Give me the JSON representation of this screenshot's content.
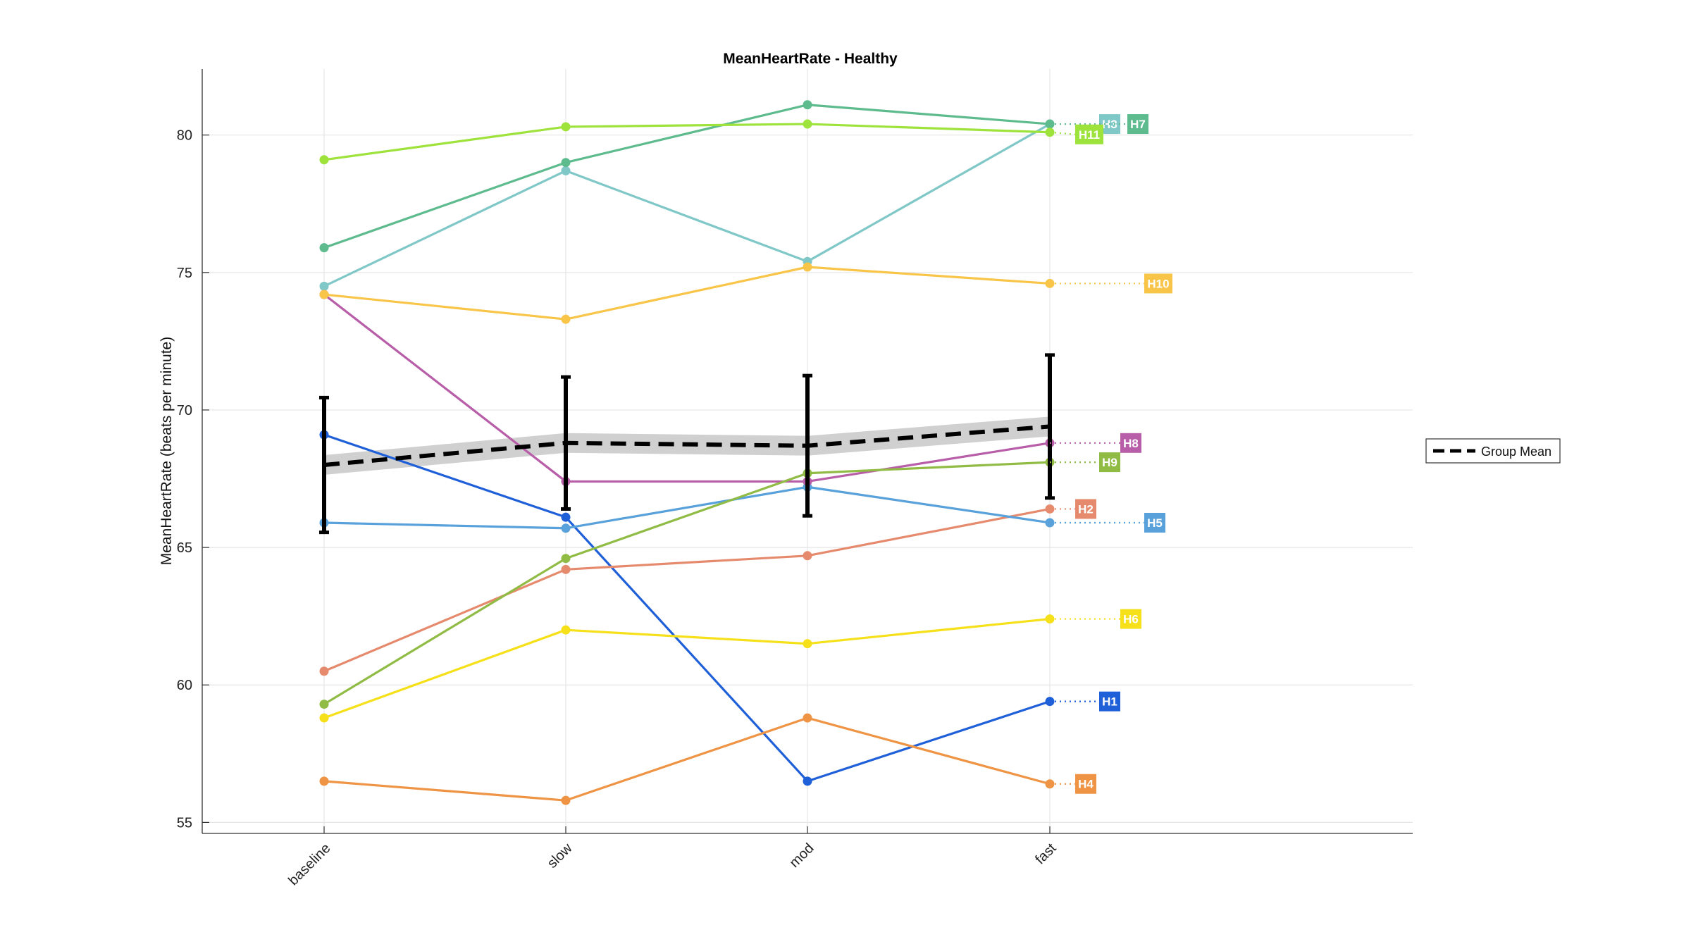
{
  "chart_data": {
    "type": "line",
    "title": "MeanHeartRate - Healthy",
    "xlabel": "",
    "ylabel": "MeanHeartRate (beats per minute)",
    "categories": [
      "baseline",
      "slow",
      "mod",
      "fast"
    ],
    "ylim": [
      54.6,
      82.4
    ],
    "yticks": [
      55,
      60,
      65,
      70,
      75,
      80
    ],
    "grid": true,
    "legend": {
      "placement": "right",
      "entries": [
        "Group Mean"
      ]
    },
    "series": [
      {
        "name": "H1",
        "color": "#1f5fd8",
        "values": [
          69.1,
          66.1,
          56.5,
          59.4
        ]
      },
      {
        "name": "H2",
        "color": "#e68a6e",
        "values": [
          60.5,
          64.2,
          64.7,
          66.4
        ]
      },
      {
        "name": "H3",
        "color": "#80c8c8",
        "values": [
          74.5,
          78.7,
          75.4,
          80.4
        ]
      },
      {
        "name": "H4",
        "color": "#ee9444",
        "values": [
          56.5,
          55.8,
          58.8,
          56.4
        ]
      },
      {
        "name": "H5",
        "color": "#58a1da",
        "values": [
          65.9,
          65.7,
          67.2,
          65.9
        ]
      },
      {
        "name": "H6",
        "color": "#f5e01a",
        "values": [
          58.8,
          62.0,
          61.5,
          62.4
        ]
      },
      {
        "name": "H7",
        "color": "#5dbb8e",
        "values": [
          75.9,
          79.0,
          81.1,
          80.4
        ]
      },
      {
        "name": "H8",
        "color": "#b85ea8",
        "values": [
          74.2,
          67.4,
          67.4,
          68.8
        ]
      },
      {
        "name": "H9",
        "color": "#90bb44",
        "values": [
          59.3,
          64.6,
          67.7,
          68.1
        ]
      },
      {
        "name": "H10",
        "color": "#f8c548",
        "values": [
          74.2,
          73.3,
          75.2,
          74.6
        ]
      },
      {
        "name": "H11",
        "color": "#9ee23c",
        "values": [
          79.1,
          80.3,
          80.4,
          80.1
        ]
      }
    ],
    "group_mean": {
      "name": "Group Mean",
      "color": "#000000",
      "values": [
        68.0,
        68.8,
        68.7,
        69.4
      ],
      "error": [
        2.45,
        2.4,
        2.55,
        2.6
      ]
    }
  }
}
